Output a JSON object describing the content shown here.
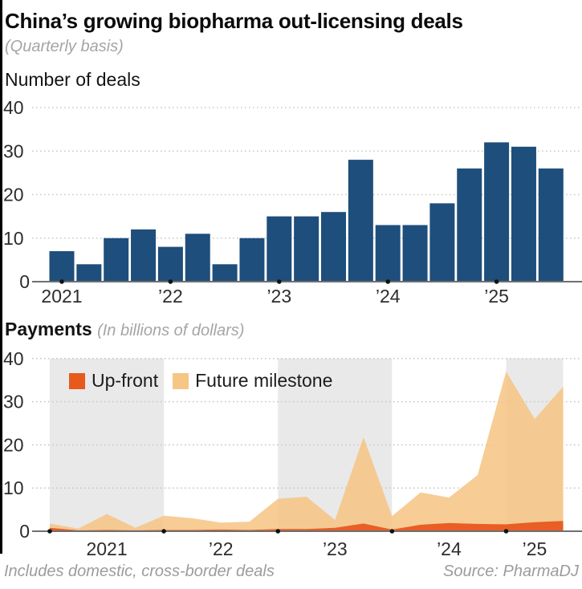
{
  "header": {
    "title": "China’s growing biopharma out-licensing deals",
    "subtitle": "(Quarterly basis)"
  },
  "footer": {
    "note": "Includes domestic, cross-border deals",
    "source": "Source: PharmaDJ"
  },
  "colors": {
    "bar_navy": "#1e4e7b",
    "upfront": "#e7591d",
    "future_milestone": "#f6c685",
    "year_band": "#e9e9e9",
    "gridline": "#c9c9c9",
    "axis": "#6f6f6f",
    "tick_dot": "#111111",
    "tick_text": "#2d2d2d"
  },
  "chart_data": [
    {
      "type": "bar",
      "title": "Number of deals",
      "categories": [
        "2021 Q1",
        "2021 Q2",
        "2021 Q3",
        "2021 Q4",
        "2022 Q1",
        "2022 Q2",
        "2022 Q3",
        "2022 Q4",
        "2023 Q1",
        "2023 Q2",
        "2023 Q3",
        "2023 Q4",
        "2024 Q1",
        "2024 Q2",
        "2024 Q3",
        "2024 Q4",
        "2025 Q1",
        "2025 Q2",
        "2025 Q3"
      ],
      "values": [
        7,
        4,
        10,
        12,
        8,
        11,
        4,
        10,
        15,
        15,
        16,
        28,
        13,
        13,
        18,
        26,
        32,
        31,
        26
      ],
      "xticks": [
        "2021",
        "’22",
        "’23",
        "’24",
        "’25"
      ],
      "yticks": [
        0,
        10,
        20,
        30,
        40
      ],
      "ylim": [
        0,
        40
      ],
      "grid": "dotted-horizontal",
      "xlabel": "",
      "ylabel": "Number of deals"
    },
    {
      "type": "area",
      "title": "Payments",
      "subtitle": "(In billions of dollars)",
      "stacked": true,
      "categories": [
        "2021 Q1",
        "2021 Q2",
        "2021 Q3",
        "2021 Q4",
        "2022 Q1",
        "2022 Q2",
        "2022 Q3",
        "2022 Q4",
        "2023 Q1",
        "2023 Q2",
        "2023 Q3",
        "2023 Q4",
        "2024 Q1",
        "2024 Q2",
        "2024 Q3",
        "2024 Q4",
        "2025 Q1",
        "2025 Q2",
        "2025 Q3"
      ],
      "series": [
        {
          "name": "Up-front",
          "values": [
            0.8,
            0.2,
            0.3,
            0.2,
            0.3,
            0.3,
            0.4,
            0.3,
            0.5,
            0.5,
            0.8,
            1.8,
            0.4,
            1.5,
            1.9,
            1.7,
            1.6,
            2.1,
            2.4
          ]
        },
        {
          "name": "Future milestone",
          "values": [
            1.0,
            0.4,
            3.7,
            0.6,
            3.3,
            2.7,
            1.6,
            1.9,
            7.0,
            7.5,
            1.8,
            20.0,
            3.1,
            7.5,
            5.9,
            11.3,
            35.4,
            23.9,
            31.1
          ]
        }
      ],
      "xticks": [
        "2021",
        "’22",
        "’23",
        "’24",
        "’25"
      ],
      "yticks": [
        0,
        10,
        20,
        30,
        40
      ],
      "ylim": [
        0,
        40
      ],
      "grid": "dotted-horizontal",
      "legend_position": "top-left",
      "shaded_year_bands": [
        "2021",
        "2023",
        "2025"
      ]
    }
  ]
}
